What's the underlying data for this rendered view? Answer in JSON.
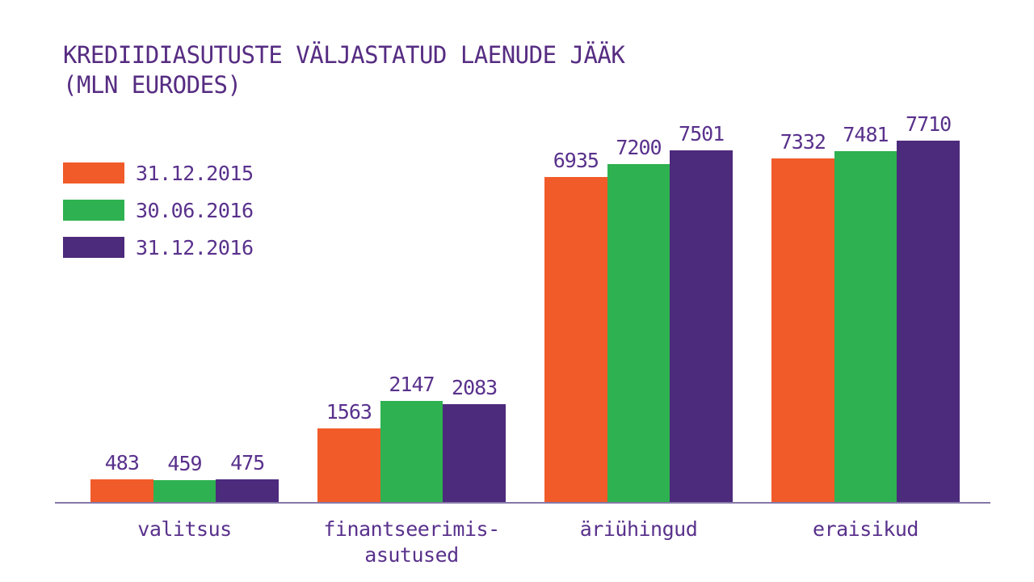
{
  "chart": {
    "title": "KREDIIDIASUTUSTE VÄLJASTATUD LAENUDE JÄÄK",
    "subtitle": "(MLN EURODES)"
  },
  "chart_data": {
    "type": "bar",
    "title": "KREDIIDIASUTUSTE VÄLJASTATUD LAENUDE JÄÄK (MLN EURODES)",
    "categories": [
      "valitsus",
      "finantseerimis-\nasutused",
      "äriühingud",
      "eraisikud"
    ],
    "series": [
      {
        "name": "31.12.2015",
        "color": "#F15B29",
        "values": [
          483,
          1563,
          6935,
          7332
        ]
      },
      {
        "name": "30.06.2016",
        "color": "#2EB150",
        "values": [
          459,
          2147,
          7200,
          7481
        ]
      },
      {
        "name": "31.12.2016",
        "color": "#4C2A7C",
        "values": [
          475,
          2083,
          7501,
          7710
        ]
      }
    ],
    "xlabel": "",
    "ylabel": "",
    "ylim": [
      0,
      8000
    ],
    "grid": false,
    "legend_position": "upper-left",
    "bar_value_labels": true
  },
  "colors": {
    "title_text": "#562C82",
    "label_text": "#59318C",
    "axis_line": "#8578A8",
    "background": "#FFFFFF"
  }
}
